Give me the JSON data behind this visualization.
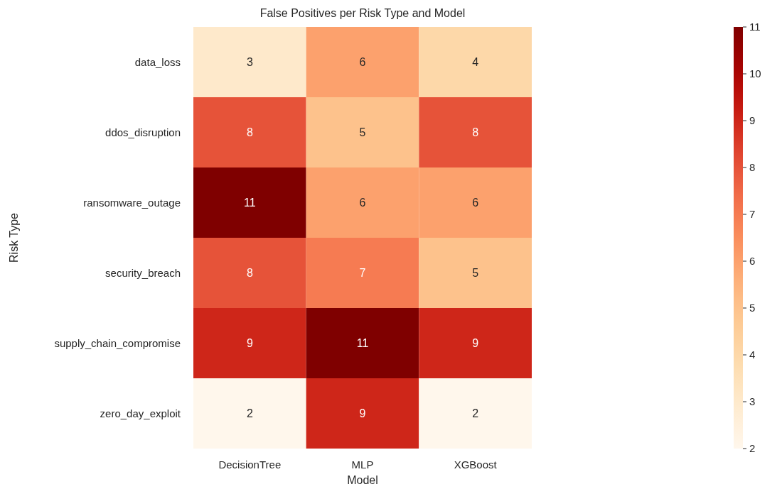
{
  "chart_data": {
    "type": "heatmap",
    "title": "False Positives per Risk Type and Model",
    "xlabel": "Model",
    "ylabel": "Risk Type",
    "categories": [
      "DecisionTree",
      "MLP",
      "XGBoost"
    ],
    "y_categories": [
      "data_loss",
      "ddos_disruption",
      "ransomware_outage",
      "security_breach",
      "supply_chain_compromise",
      "zero_day_exploit"
    ],
    "cells": [
      [
        3,
        6,
        4
      ],
      [
        8,
        5,
        8
      ],
      [
        11,
        6,
        6
      ],
      [
        8,
        7,
        5
      ],
      [
        9,
        11,
        9
      ],
      [
        2,
        9,
        2
      ]
    ],
    "clim": [
      2,
      11
    ],
    "cticks": [
      2,
      3,
      4,
      5,
      6,
      7,
      8,
      9,
      10,
      11
    ],
    "data_labels": true
  }
}
